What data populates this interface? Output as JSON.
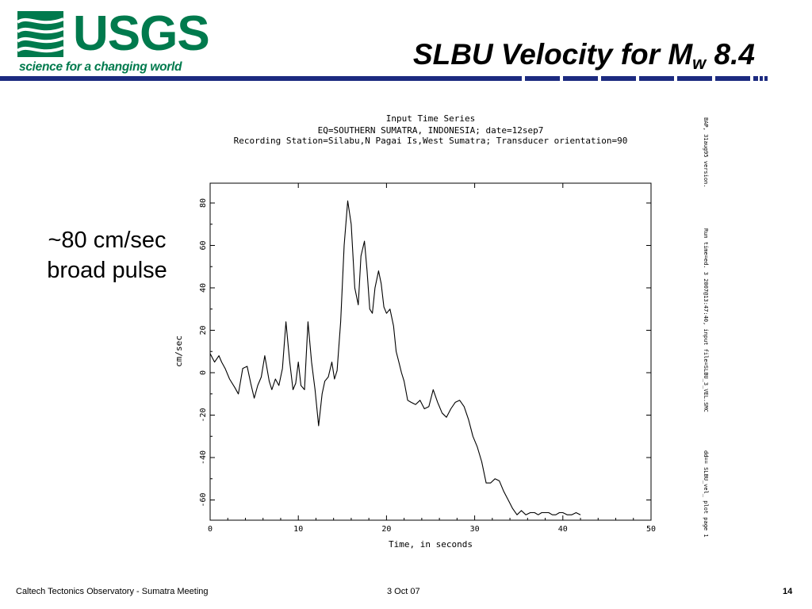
{
  "logo": {
    "name": "USGS",
    "tagline": "science for a changing world"
  },
  "slide": {
    "title_main": "SLBU Velocity for M",
    "title_sub": "w",
    "title_tail": " 8.4",
    "side_note_line1": "~80 cm/sec",
    "side_note_line2": "broad pulse"
  },
  "footer": {
    "left": "Caltech Tectonics Observatory -  Sumatra Meeting",
    "center": "3 Oct 07",
    "page": "14"
  },
  "colors": {
    "usgs_green": "#007a4d",
    "rule_blue": "#1c2a80"
  },
  "chart_data": {
    "type": "line",
    "title": "Input Time Series",
    "subtitle1": "EQ=SOUTHERN SUMATRA, INDONESIA; date=12sep7",
    "subtitle2": "Recording Station=Silabu,N Pagai Is,West Sumatra; Transducer orientation=90",
    "xlabel": "Time, in seconds",
    "ylabel": "cm/sec",
    "xlim": [
      0,
      50
    ],
    "ylim": [
      -70,
      90
    ],
    "xticks": [
      0,
      10,
      20,
      30,
      40,
      50
    ],
    "yticks": [
      80,
      60,
      40,
      20,
      0,
      -20,
      -40,
      -60
    ],
    "side_text_1": "BAP, 31aug95 version.",
    "side_text_2": "Run time=ed. 3 2007@13:47:40, input file=SLBU_3_VEL.SMC",
    "side_text_3": "dd== SLBU_vel_ plot page 1",
    "series": [
      {
        "x": [
          0,
          0.5,
          1,
          1.3,
          1.7,
          2.2,
          2.8,
          3.2,
          3.7,
          4.2,
          4.6,
          5.0,
          5.4,
          5.8,
          6.2,
          6.7,
          7.0,
          7.4,
          7.8,
          8.2,
          8.6,
          9.0,
          9.4,
          9.7,
          10.0,
          10.3,
          10.7,
          11.1,
          11.5,
          11.9,
          12.3,
          12.7,
          13.0,
          13.4,
          13.8,
          14.1,
          14.4,
          14.8,
          15.2,
          15.6,
          16.0,
          16.4,
          16.8,
          17.1,
          17.5,
          17.8,
          18.1,
          18.4,
          18.7,
          19.1,
          19.4,
          19.7,
          20.0,
          20.4,
          20.8,
          21.1,
          21.4,
          21.7,
          22.0,
          22.4,
          22.8,
          23.3,
          23.8,
          24.3,
          24.8,
          25.3,
          25.8,
          26.3,
          26.8,
          27.3,
          27.8,
          28.3,
          28.8,
          29.3,
          29.8,
          30.3,
          30.8,
          31.3,
          31.8,
          32.3,
          32.8,
          33.3,
          33.8,
          34.3,
          34.8,
          35.3,
          35.8,
          36.3,
          36.8,
          37.2,
          37.6,
          38.0,
          38.4,
          38.8,
          39.2,
          39.6,
          40.0,
          40.5,
          41.0,
          41.5,
          42.0
        ],
        "y": [
          9,
          5,
          8,
          5,
          2,
          -3,
          -7,
          -10,
          2,
          3,
          -5,
          -12,
          -6,
          -2,
          8,
          -4,
          -8,
          -3,
          -6,
          2,
          24,
          6,
          -8,
          -5,
          5,
          -6,
          -8,
          24,
          5,
          -8,
          -25,
          -10,
          -4,
          -2,
          5,
          -3,
          1,
          24,
          60,
          81,
          70,
          40,
          32,
          55,
          62,
          48,
          30,
          28,
          40,
          48,
          42,
          31,
          28,
          30,
          22,
          10,
          5,
          0,
          -4,
          -13,
          -14,
          -15,
          -13,
          -17,
          -16,
          -8,
          -14,
          -19,
          -21,
          -17,
          -14,
          -13,
          -16,
          -22,
          -30,
          -35,
          -42,
          -52,
          -52,
          -50,
          -51,
          -56,
          -60,
          -64,
          -67,
          -65,
          -67,
          -66,
          -66,
          -67,
          -66,
          -66,
          -66,
          -67,
          -67,
          -66,
          -66,
          -67,
          -67,
          -66,
          -67
        ]
      }
    ]
  }
}
